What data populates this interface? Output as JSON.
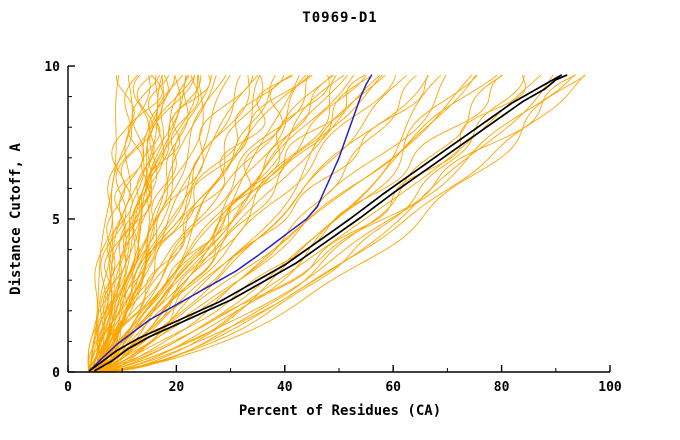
{
  "title": "T0969-D1",
  "chart_data": {
    "type": "line",
    "title": "T0969-D1",
    "xlabel": "Percent of Residues (CA)",
    "ylabel": "Distance Cutoff, A",
    "xlim": [
      0,
      100
    ],
    "ylim": [
      0,
      10
    ],
    "x_ticks": [
      0,
      20,
      40,
      60,
      80,
      100
    ],
    "x_minor_step": 10,
    "y_ticks": [
      0,
      5,
      10
    ],
    "y_minor_step": 1,
    "grid": false,
    "legend": false,
    "background": "#ffffff",
    "axis_color": "#000000",
    "colors": {
      "ensemble": "#FFA500",
      "highlight": "#000000",
      "reference": "#2222CC"
    },
    "series": [
      {
        "name": "reference-model-blue",
        "color": "#2222CC",
        "width": 1.5,
        "points": [
          [
            4,
            0.05
          ],
          [
            6,
            0.4
          ],
          [
            9,
            0.9
          ],
          [
            12,
            1.3
          ],
          [
            15,
            1.7
          ],
          [
            19,
            2.1
          ],
          [
            23,
            2.5
          ],
          [
            27,
            2.9
          ],
          [
            31,
            3.3
          ],
          [
            35,
            3.8
          ],
          [
            38,
            4.2
          ],
          [
            41,
            4.6
          ],
          [
            44,
            5.0
          ],
          [
            46,
            5.4
          ],
          [
            47,
            5.8
          ],
          [
            48,
            6.2
          ],
          [
            49,
            6.6
          ],
          [
            50,
            7.0
          ],
          [
            51,
            7.5
          ],
          [
            52,
            8.0
          ],
          [
            53,
            8.5
          ],
          [
            54,
            9.0
          ],
          [
            55,
            9.4
          ],
          [
            56,
            9.7
          ]
        ]
      },
      {
        "name": "best-model-black-1",
        "color": "#000000",
        "width": 1.7,
        "points": [
          [
            4,
            0.05
          ],
          [
            6,
            0.3
          ],
          [
            9,
            0.7
          ],
          [
            13,
            1.1
          ],
          [
            18,
            1.5
          ],
          [
            23,
            1.9
          ],
          [
            28,
            2.3
          ],
          [
            32,
            2.7
          ],
          [
            36,
            3.1
          ],
          [
            40,
            3.5
          ],
          [
            44,
            4.0
          ],
          [
            48,
            4.5
          ],
          [
            52,
            5.0
          ],
          [
            55,
            5.4
          ],
          [
            58,
            5.8
          ],
          [
            62,
            6.3
          ],
          [
            66,
            6.8
          ],
          [
            70,
            7.3
          ],
          [
            74,
            7.8
          ],
          [
            78,
            8.3
          ],
          [
            82,
            8.8
          ],
          [
            86,
            9.2
          ],
          [
            89,
            9.5
          ],
          [
            91,
            9.7
          ]
        ]
      },
      {
        "name": "best-model-black-2",
        "color": "#000000",
        "width": 1.7,
        "points": [
          [
            5,
            0.05
          ],
          [
            8,
            0.35
          ],
          [
            11,
            0.75
          ],
          [
            15,
            1.15
          ],
          [
            20,
            1.55
          ],
          [
            25,
            1.95
          ],
          [
            30,
            2.35
          ],
          [
            34,
            2.75
          ],
          [
            38,
            3.15
          ],
          [
            42,
            3.55
          ],
          [
            46,
            4.05
          ],
          [
            50,
            4.55
          ],
          [
            54,
            5.05
          ],
          [
            57,
            5.45
          ],
          [
            60,
            5.85
          ],
          [
            64,
            6.35
          ],
          [
            68,
            6.85
          ],
          [
            72,
            7.35
          ],
          [
            76,
            7.85
          ],
          [
            80,
            8.35
          ],
          [
            84,
            8.85
          ],
          [
            88,
            9.25
          ],
          [
            90,
            9.55
          ],
          [
            92,
            9.7
          ]
        ]
      }
    ],
    "ensemble": {
      "name": "server-model-curves",
      "color": "#FFA500",
      "width": 0.9,
      "y_top": 9.7,
      "curve_params_format": "[start_percent_at_cutoff0, end_percent_at_cutoff_top, shape_power]",
      "curves": [
        [
          4,
          10,
          1.0
        ],
        [
          5,
          12,
          1.2
        ],
        [
          4,
          14,
          0.9
        ],
        [
          6,
          15,
          1.1
        ],
        [
          5,
          16,
          1.3
        ],
        [
          4,
          17,
          0.8
        ],
        [
          6,
          18,
          1.0
        ],
        [
          5,
          19,
          1.4
        ],
        [
          7,
          20,
          0.9
        ],
        [
          4,
          21,
          1.1
        ],
        [
          6,
          22,
          1.2
        ],
        [
          5,
          23,
          0.7
        ],
        [
          7,
          24,
          1.0
        ],
        [
          4,
          25,
          1.3
        ],
        [
          6,
          26,
          0.9
        ],
        [
          5,
          27,
          1.1
        ],
        [
          8,
          28,
          1.2
        ],
        [
          4,
          13,
          1.5
        ],
        [
          5,
          11,
          0.8
        ],
        [
          6,
          16,
          1.6
        ],
        [
          4,
          19,
          0.6
        ],
        [
          7,
          22,
          1.4
        ],
        [
          5,
          25,
          0.8
        ],
        [
          6,
          20,
          1.0
        ],
        [
          4,
          15,
          1.2
        ],
        [
          5,
          18,
          0.9
        ],
        [
          6,
          24,
          1.5
        ],
        [
          7,
          17,
          0.7
        ],
        [
          4,
          23,
          1.0
        ],
        [
          5,
          21,
          1.3
        ],
        [
          5,
          30,
          0.9
        ],
        [
          6,
          33,
          1.1
        ],
        [
          4,
          36,
          0.8
        ],
        [
          7,
          38,
          1.2
        ],
        [
          5,
          40,
          1.0
        ],
        [
          6,
          42,
          0.7
        ],
        [
          4,
          44,
          1.3
        ],
        [
          7,
          45,
          0.9
        ],
        [
          5,
          46,
          1.1
        ],
        [
          6,
          47,
          0.8
        ],
        [
          4,
          48,
          1.2
        ],
        [
          7,
          49,
          1.0
        ],
        [
          5,
          50,
          0.9
        ],
        [
          6,
          51,
          1.1
        ],
        [
          4,
          52,
          0.8
        ],
        [
          7,
          53,
          1.2
        ],
        [
          5,
          54,
          1.0
        ],
        [
          6,
          55,
          0.9
        ],
        [
          4,
          56,
          1.1
        ],
        [
          7,
          57,
          0.8
        ],
        [
          5,
          58,
          1.0
        ],
        [
          6,
          59,
          1.2
        ],
        [
          4,
          60,
          0.9
        ],
        [
          5,
          43,
          1.4
        ],
        [
          6,
          41,
          0.6
        ],
        [
          7,
          39,
          1.0
        ],
        [
          5,
          35,
          1.2
        ],
        [
          6,
          37,
          0.8
        ],
        [
          4,
          34,
          1.0
        ],
        [
          5,
          32,
          1.1
        ],
        [
          5,
          62,
          0.8
        ],
        [
          6,
          65,
          0.7
        ],
        [
          4,
          68,
          0.9
        ],
        [
          7,
          70,
          0.6
        ],
        [
          5,
          72,
          0.8
        ],
        [
          6,
          75,
          0.7
        ],
        [
          4,
          78,
          0.9
        ],
        [
          7,
          80,
          0.6
        ],
        [
          5,
          82,
          0.8
        ],
        [
          6,
          85,
          0.7
        ],
        [
          4,
          88,
          0.75
        ],
        [
          7,
          90,
          0.65
        ],
        [
          5,
          92,
          0.7
        ],
        [
          6,
          94,
          0.6
        ],
        [
          5,
          95,
          0.8
        ],
        [
          6,
          96,
          0.7
        ],
        [
          4,
          84,
          0.55
        ],
        [
          5,
          76,
          0.85
        ],
        [
          6,
          66,
          0.95
        ],
        [
          5,
          73,
          0.6
        ]
      ]
    }
  }
}
